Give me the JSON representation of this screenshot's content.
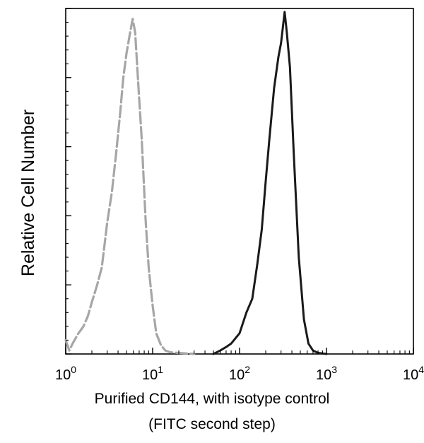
{
  "chart_data": {
    "type": "line",
    "chart_kind": "flow cytometry histogram",
    "xscale": "log",
    "xlim": [
      1,
      10000
    ],
    "x_tick_labels": [
      {
        "base": "10",
        "exp": "0",
        "value": 1
      },
      {
        "base": "10",
        "exp": "1",
        "value": 10
      },
      {
        "base": "10",
        "exp": "2",
        "value": 100
      },
      {
        "base": "10",
        "exp": "3",
        "value": 1000
      },
      {
        "base": "10",
        "exp": "4",
        "value": 10000
      }
    ],
    "ylim": [
      0,
      1
    ],
    "y_tick_labels_shown": false,
    "xlabel_line1": "Purified CD144, with isotype control",
    "xlabel_line2": "(FITC second step)",
    "ylabel": "Relative Cell Number",
    "grid": false,
    "legend": "none",
    "series": [
      {
        "style": "dashed",
        "color": "#a6a6a6",
        "x": [
          1.0,
          1.1,
          1.2,
          1.4,
          1.6,
          1.8,
          2.0,
          2.3,
          2.6,
          3.0,
          3.4,
          3.8,
          4.2,
          4.6,
          5.0,
          5.5,
          5.9,
          6.3,
          6.8,
          7.5,
          8.3,
          9.0,
          10,
          11,
          12.5,
          14,
          16,
          20,
          30
        ],
        "y": [
          0.04,
          0.01,
          0.03,
          0.06,
          0.08,
          0.11,
          0.15,
          0.2,
          0.25,
          0.38,
          0.47,
          0.58,
          0.69,
          0.8,
          0.87,
          0.93,
          0.97,
          0.93,
          0.79,
          0.62,
          0.39,
          0.25,
          0.14,
          0.06,
          0.025,
          0.01,
          0.005,
          0.003,
          0.0
        ]
      },
      {
        "style": "solid",
        "color": "#1a1a1a",
        "x": [
          50,
          60,
          70,
          80,
          100,
          120,
          140,
          160,
          180,
          200,
          220,
          250,
          280,
          300,
          330,
          350,
          380,
          420,
          480,
          550,
          620,
          700,
          800,
          1000
        ],
        "y": [
          0.0,
          0.01,
          0.02,
          0.03,
          0.06,
          0.12,
          0.16,
          0.26,
          0.36,
          0.5,
          0.62,
          0.77,
          0.86,
          0.9,
          0.99,
          0.93,
          0.83,
          0.58,
          0.28,
          0.1,
          0.03,
          0.01,
          0.003,
          0.0
        ]
      }
    ]
  }
}
